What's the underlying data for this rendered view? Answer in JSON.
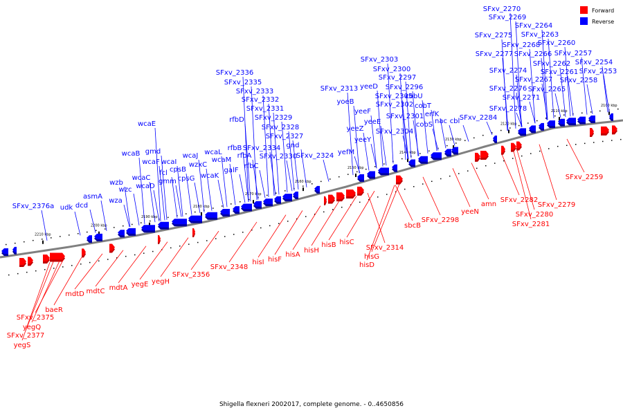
{
  "caption": "Shigella flexneri 2002017, complete genome. - 0..4650856",
  "legend": [
    {
      "label": "Forward",
      "color": "#ff0000"
    },
    {
      "label": "Reverse",
      "color": "#0000ff"
    }
  ],
  "colors": {
    "forward": "#ff0000",
    "reverse": "#0000ff",
    "backbone": "#808080"
  },
  "ticks": [
    "2100 kbp",
    "2110 kbp",
    "2120 kbp",
    "2130 kbp",
    "2140 kbp",
    "2150 kbp",
    "2160 kbp",
    "2170 kbp",
    "2180 kbp",
    "2190 kbp",
    "2200 kbp",
    "2210 kbp"
  ],
  "reverse_labels": [
    "SFxv_2270",
    "SFxv_2269",
    "SFxv_2264",
    "SFxv_2275",
    "SFxv_2263",
    "SFxv_2268",
    "SFxv_2260",
    "SFxv_2277",
    "SFxv_2266",
    "SFxv_2257",
    "SFxv_2303",
    "SFxv_2262",
    "SFxv_2254",
    "SFxv_2300",
    "SFxv_2274",
    "SFxv_2261",
    "SFxv_2253",
    "SFxv_2336",
    "SFxv_2297",
    "SFxv_2267",
    "SFxv_2258",
    "SFxv_2335",
    "yeeD",
    "SFxv_2296",
    "SFxv_2313",
    "SFxv_2276",
    "SFxv_2265",
    "SFxv_2333",
    "SFxv_2305",
    "cobU",
    "SFxv_2271",
    "SFxv_2332",
    "yoeB",
    "SFxv_2302",
    "cobT",
    "SFxv_2278",
    "SFxv_2331",
    "yeeF",
    "SFxv_2301",
    "erfK",
    "SFxv_2284",
    "SFxv_2329",
    "yeeE",
    "cobS",
    "nac",
    "cbl",
    "rfbD",
    "SFxv_2328",
    "yeeZ",
    "SFxv_2304",
    "wcaE",
    "rfbB",
    "SFxv_2327",
    "yeeY",
    "gmd",
    "wcaL",
    "SFxv_2334",
    "gnd",
    "wcaB",
    "wcaJ",
    "rfbA",
    "SFxv_2330",
    "SFxv_2324",
    "wcaF",
    "wcaI",
    "wzxC",
    "wcaM",
    "yefM",
    "rfbC",
    "cpsB",
    "fcl",
    "galF",
    "gmm",
    "wcaC",
    "cpsG",
    "wcaK",
    "wzb",
    "wcaD",
    "asmA",
    "wzc",
    "dcd",
    "udk",
    "wza",
    "SFxv_2376a"
  ],
  "forward_labels": [
    "SFxv_2259",
    "SFxv_2282",
    "SFxv_2279",
    "amn",
    "yeeN",
    "SFxv_2280",
    "SFxv_2298",
    "SFxv_2281",
    "sbcB",
    "SFxv_2314",
    "hisC",
    "hisI",
    "hisF",
    "hisA",
    "hisH",
    "hisB",
    "hisG",
    "hisD",
    "SFxv_2348",
    "SFxv_2356",
    "yegH",
    "yegE",
    "mdtA",
    "mdtC",
    "mdtD",
    "baeR",
    "SFxv_2375",
    "yegQ",
    "SFxv_2377",
    "yegS"
  ]
}
